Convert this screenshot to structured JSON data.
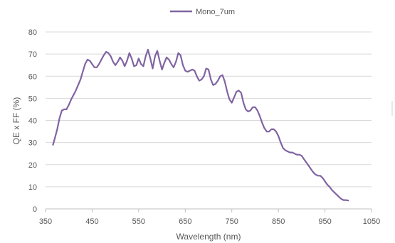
{
  "chart_data": {
    "type": "line",
    "title": "",
    "xlabel": "Wavelength (nm)",
    "ylabel": "QE x FF (%)",
    "xlim": [
      350,
      1050
    ],
    "ylim": [
      0,
      80
    ],
    "xticks": [
      350,
      450,
      550,
      650,
      750,
      850,
      950,
      1050
    ],
    "yticks": [
      0,
      10,
      20,
      30,
      40,
      50,
      60,
      70,
      80
    ],
    "grid": true,
    "legend_position": "top-center",
    "series": [
      {
        "name": "Mono_7um",
        "color": "#8064a2",
        "points": [
          [
            366,
            29
          ],
          [
            370,
            32
          ],
          [
            375,
            36
          ],
          [
            380,
            41
          ],
          [
            385,
            44.5
          ],
          [
            390,
            45
          ],
          [
            395,
            45
          ],
          [
            400,
            47
          ],
          [
            405,
            49.5
          ],
          [
            410,
            51.5
          ],
          [
            415,
            53.5
          ],
          [
            420,
            56
          ],
          [
            425,
            58.5
          ],
          [
            430,
            62
          ],
          [
            435,
            65.5
          ],
          [
            440,
            67.5
          ],
          [
            445,
            67
          ],
          [
            450,
            65.5
          ],
          [
            455,
            64
          ],
          [
            460,
            64
          ],
          [
            465,
            65.5
          ],
          [
            470,
            67.5
          ],
          [
            475,
            69.5
          ],
          [
            480,
            71
          ],
          [
            485,
            70.5
          ],
          [
            490,
            69
          ],
          [
            495,
            66.5
          ],
          [
            500,
            65
          ],
          [
            505,
            66.5
          ],
          [
            510,
            68.5
          ],
          [
            515,
            67
          ],
          [
            520,
            64.5
          ],
          [
            525,
            67
          ],
          [
            530,
            70.5
          ],
          [
            535,
            68
          ],
          [
            540,
            64.5
          ],
          [
            545,
            65
          ],
          [
            550,
            68
          ],
          [
            555,
            65.5
          ],
          [
            560,
            64.5
          ],
          [
            565,
            69
          ],
          [
            570,
            72
          ],
          [
            575,
            68
          ],
          [
            580,
            63.5
          ],
          [
            585,
            69
          ],
          [
            590,
            71.5
          ],
          [
            595,
            67
          ],
          [
            600,
            63
          ],
          [
            605,
            66
          ],
          [
            610,
            68.5
          ],
          [
            615,
            67.5
          ],
          [
            620,
            65.5
          ],
          [
            625,
            64
          ],
          [
            630,
            66.5
          ],
          [
            635,
            70.5
          ],
          [
            640,
            69.5
          ],
          [
            645,
            65
          ],
          [
            650,
            62.5
          ],
          [
            655,
            62
          ],
          [
            660,
            62.5
          ],
          [
            665,
            63
          ],
          [
            670,
            62.5
          ],
          [
            675,
            60
          ],
          [
            680,
            58
          ],
          [
            685,
            58.5
          ],
          [
            690,
            60
          ],
          [
            695,
            63.5
          ],
          [
            700,
            63
          ],
          [
            705,
            58.5
          ],
          [
            710,
            56
          ],
          [
            715,
            56.5
          ],
          [
            720,
            58
          ],
          [
            725,
            60
          ],
          [
            730,
            60.5
          ],
          [
            735,
            57.5
          ],
          [
            740,
            53
          ],
          [
            745,
            49.5
          ],
          [
            750,
            48
          ],
          [
            755,
            50.5
          ],
          [
            760,
            53
          ],
          [
            765,
            53.5
          ],
          [
            770,
            52.5
          ],
          [
            775,
            48
          ],
          [
            780,
            45
          ],
          [
            785,
            44
          ],
          [
            790,
            44.5
          ],
          [
            795,
            46
          ],
          [
            800,
            46
          ],
          [
            805,
            44.5
          ],
          [
            810,
            42
          ],
          [
            815,
            39
          ],
          [
            820,
            36.5
          ],
          [
            825,
            35
          ],
          [
            830,
            35
          ],
          [
            835,
            36
          ],
          [
            840,
            36
          ],
          [
            845,
            35
          ],
          [
            850,
            33
          ],
          [
            855,
            30
          ],
          [
            860,
            27.5
          ],
          [
            865,
            26.5
          ],
          [
            870,
            26
          ],
          [
            875,
            25.5
          ],
          [
            880,
            25.5
          ],
          [
            885,
            25
          ],
          [
            890,
            24.5
          ],
          [
            895,
            24.5
          ],
          [
            900,
            24
          ],
          [
            905,
            22.5
          ],
          [
            910,
            21
          ],
          [
            915,
            19.5
          ],
          [
            920,
            18
          ],
          [
            925,
            16.5
          ],
          [
            930,
            15.5
          ],
          [
            935,
            15
          ],
          [
            940,
            15
          ],
          [
            945,
            14
          ],
          [
            950,
            12.5
          ],
          [
            955,
            11
          ],
          [
            960,
            10
          ],
          [
            965,
            8.5
          ],
          [
            970,
            7.5
          ],
          [
            975,
            6.5
          ],
          [
            980,
            5.5
          ],
          [
            985,
            4.5
          ],
          [
            990,
            4
          ],
          [
            995,
            4
          ],
          [
            1000,
            3.8
          ]
        ]
      }
    ]
  }
}
